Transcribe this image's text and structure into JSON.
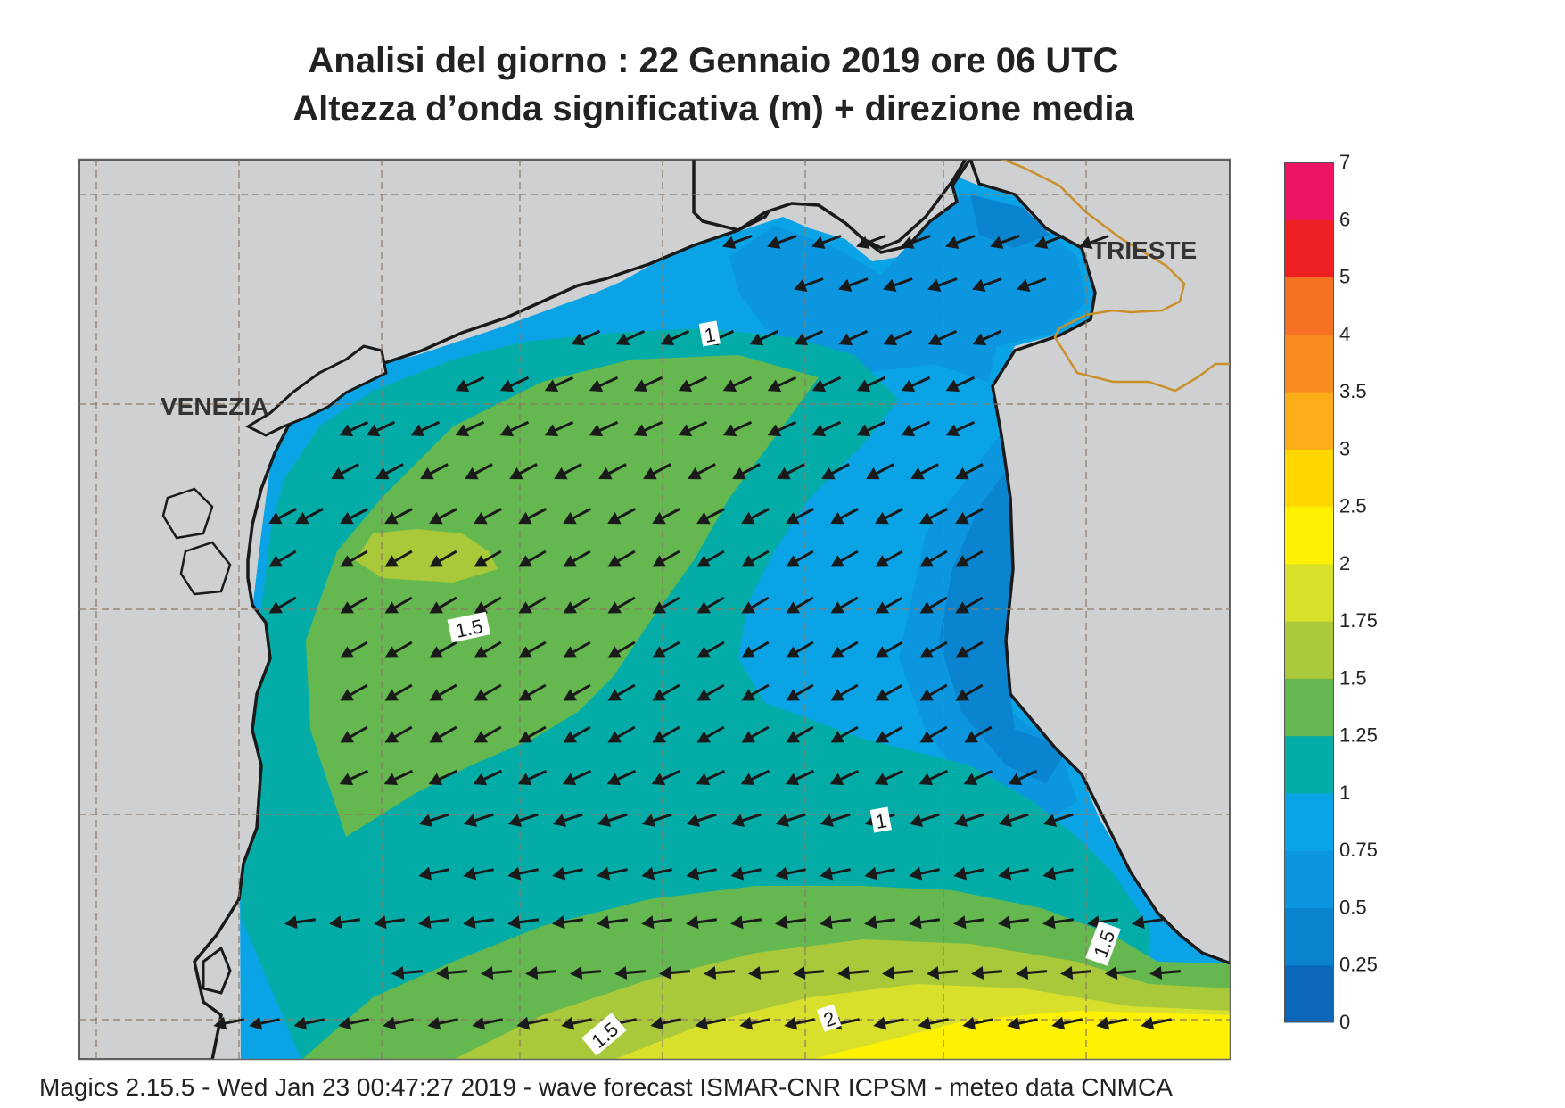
{
  "title": {
    "line1": "Analisi del giorno :  22  Gennaio  2019   ore 06 UTC",
    "line2": "Altezza d’onda significativa (m) + direzione media"
  },
  "cities": {
    "venezia": "VENEZIA",
    "trieste": "TRIESTE"
  },
  "contour_labels": [
    "1",
    "1.5",
    "1",
    "1.5",
    "1.5",
    "2"
  ],
  "legend": {
    "ticks": [
      "0",
      "0.25",
      "0.5",
      "0.75",
      "1",
      "1.25",
      "1.5",
      "1.75",
      "2",
      "2.5",
      "3",
      "3.5",
      "4",
      "5",
      "6",
      "7"
    ],
    "colors": [
      "#0b67b9",
      "#0a84cf",
      "#0b96df",
      "#0aa4e6",
      "#04aca8",
      "#64b84f",
      "#a9c93a",
      "#d8e02c",
      "#fff201",
      "#ffd700",
      "#fcad18",
      "#f98a20",
      "#f57124",
      "#ee2023",
      "#ee1465"
    ]
  },
  "colors": {
    "land": "#cfd0d2",
    "border": "#c9902a",
    "coast": "#1a1a1a",
    "grid": "#8c7a66"
  },
  "footer": "Magics 2.15.5 - Wed Jan 23 00:47:27 2019 - wave forecast  ISMAR-CNR  ICPSM - meteo data   CNMCA"
}
